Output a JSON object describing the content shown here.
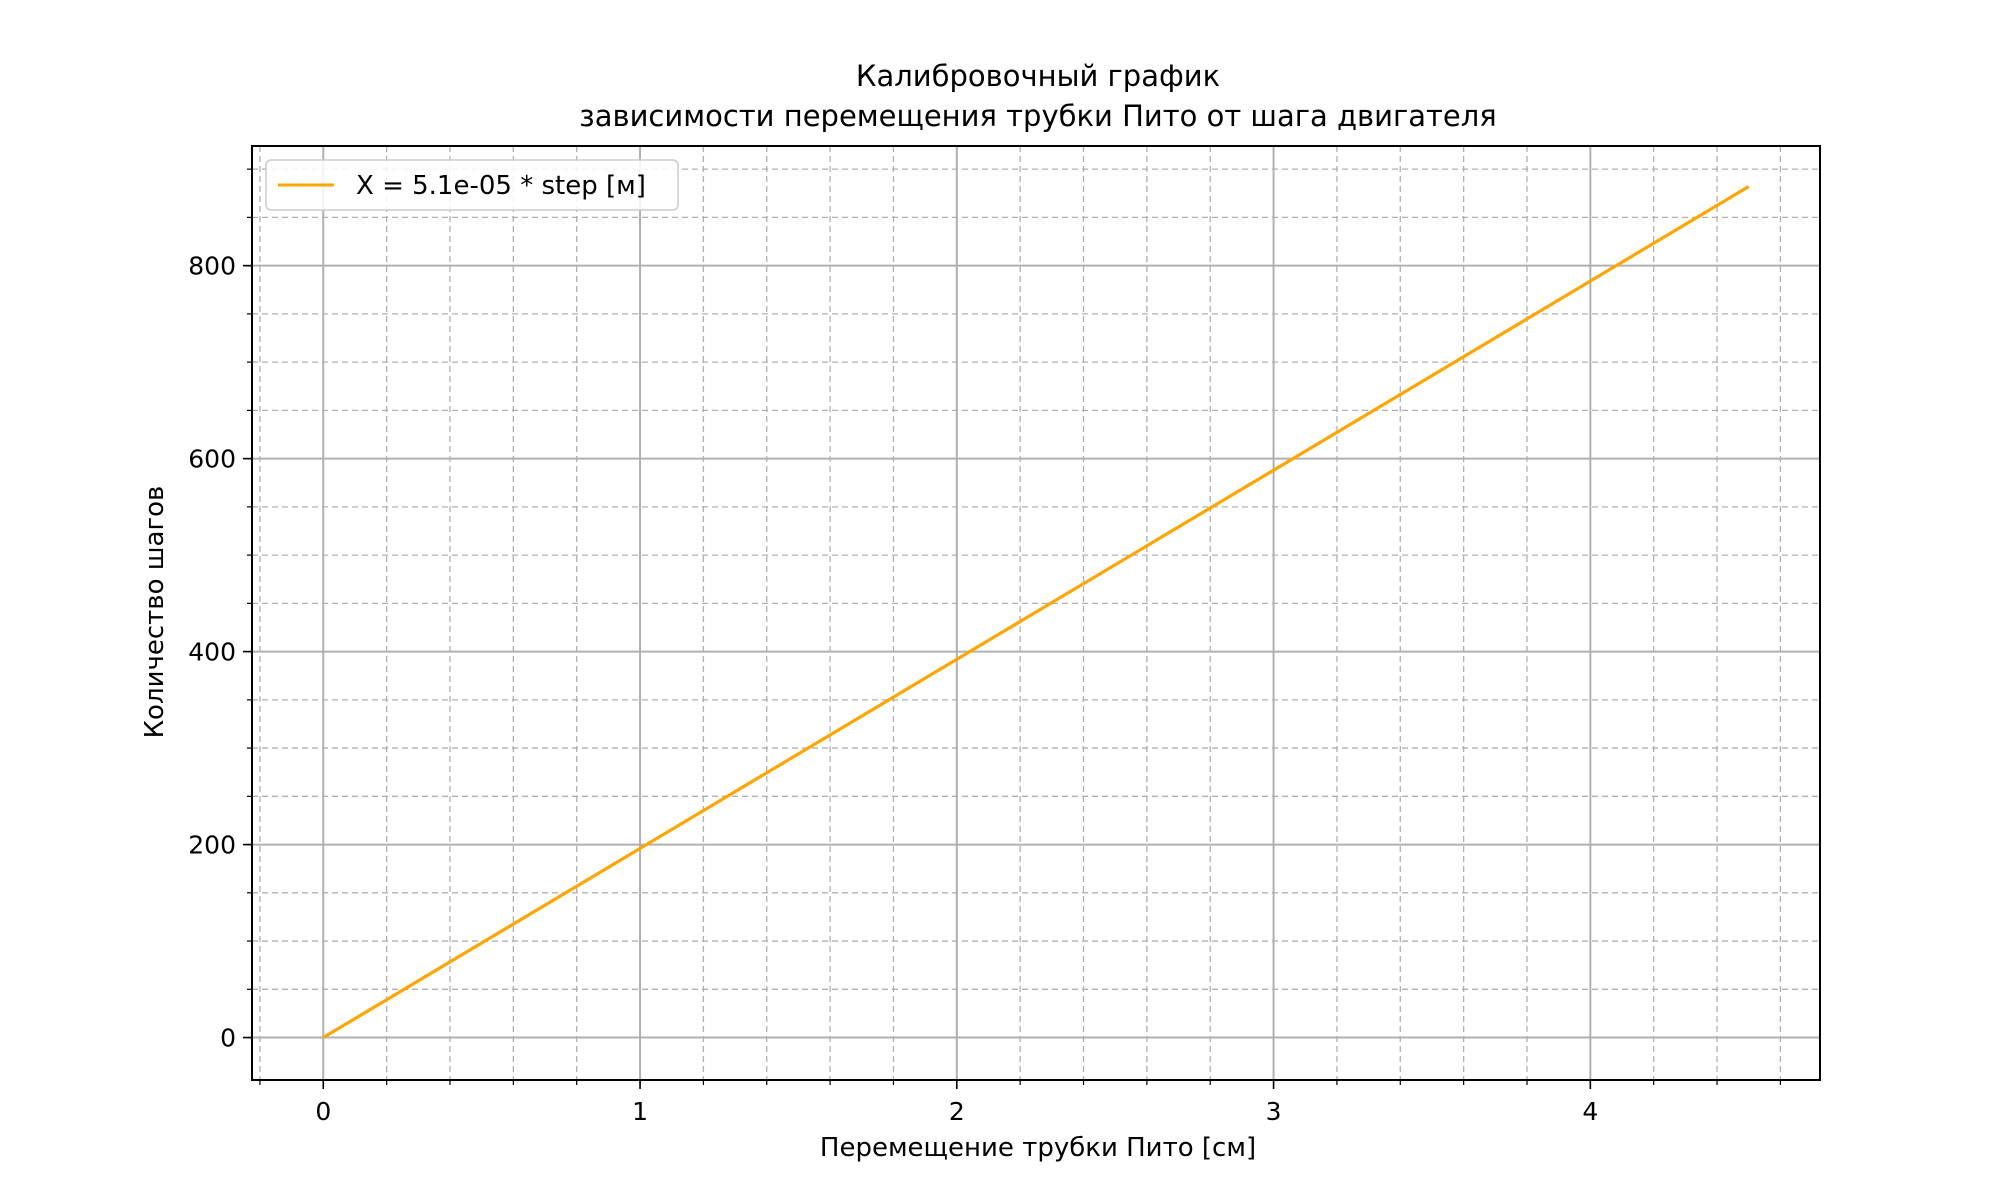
{
  "chart_data": {
    "type": "line",
    "title_line1": "Калибровочный график",
    "title_line2": "зависимости перемещения трубки Пито от шага двигателя",
    "xlabel": "Перемещение трубки Пито [см]",
    "ylabel": "Количество шагов",
    "xlim": [
      -0.225,
      4.725
    ],
    "ylim": [
      -44,
      924
    ],
    "x_ticks": [
      0,
      1,
      2,
      3,
      4
    ],
    "x_tick_labels": [
      "0",
      "1",
      "2",
      "3",
      "4"
    ],
    "y_ticks": [
      0,
      200,
      400,
      600,
      800
    ],
    "y_tick_labels": [
      "0",
      "200",
      "400",
      "600",
      "800"
    ],
    "x_minor_step": 0.2,
    "y_minor_step": 50,
    "grid": true,
    "legend_position": "upper-left",
    "series": [
      {
        "name": "X = 5.1e-05 * step [м]",
        "color": "#FFA500",
        "x": [
          0,
          4.5
        ],
        "y": [
          0,
          882
        ]
      }
    ]
  }
}
